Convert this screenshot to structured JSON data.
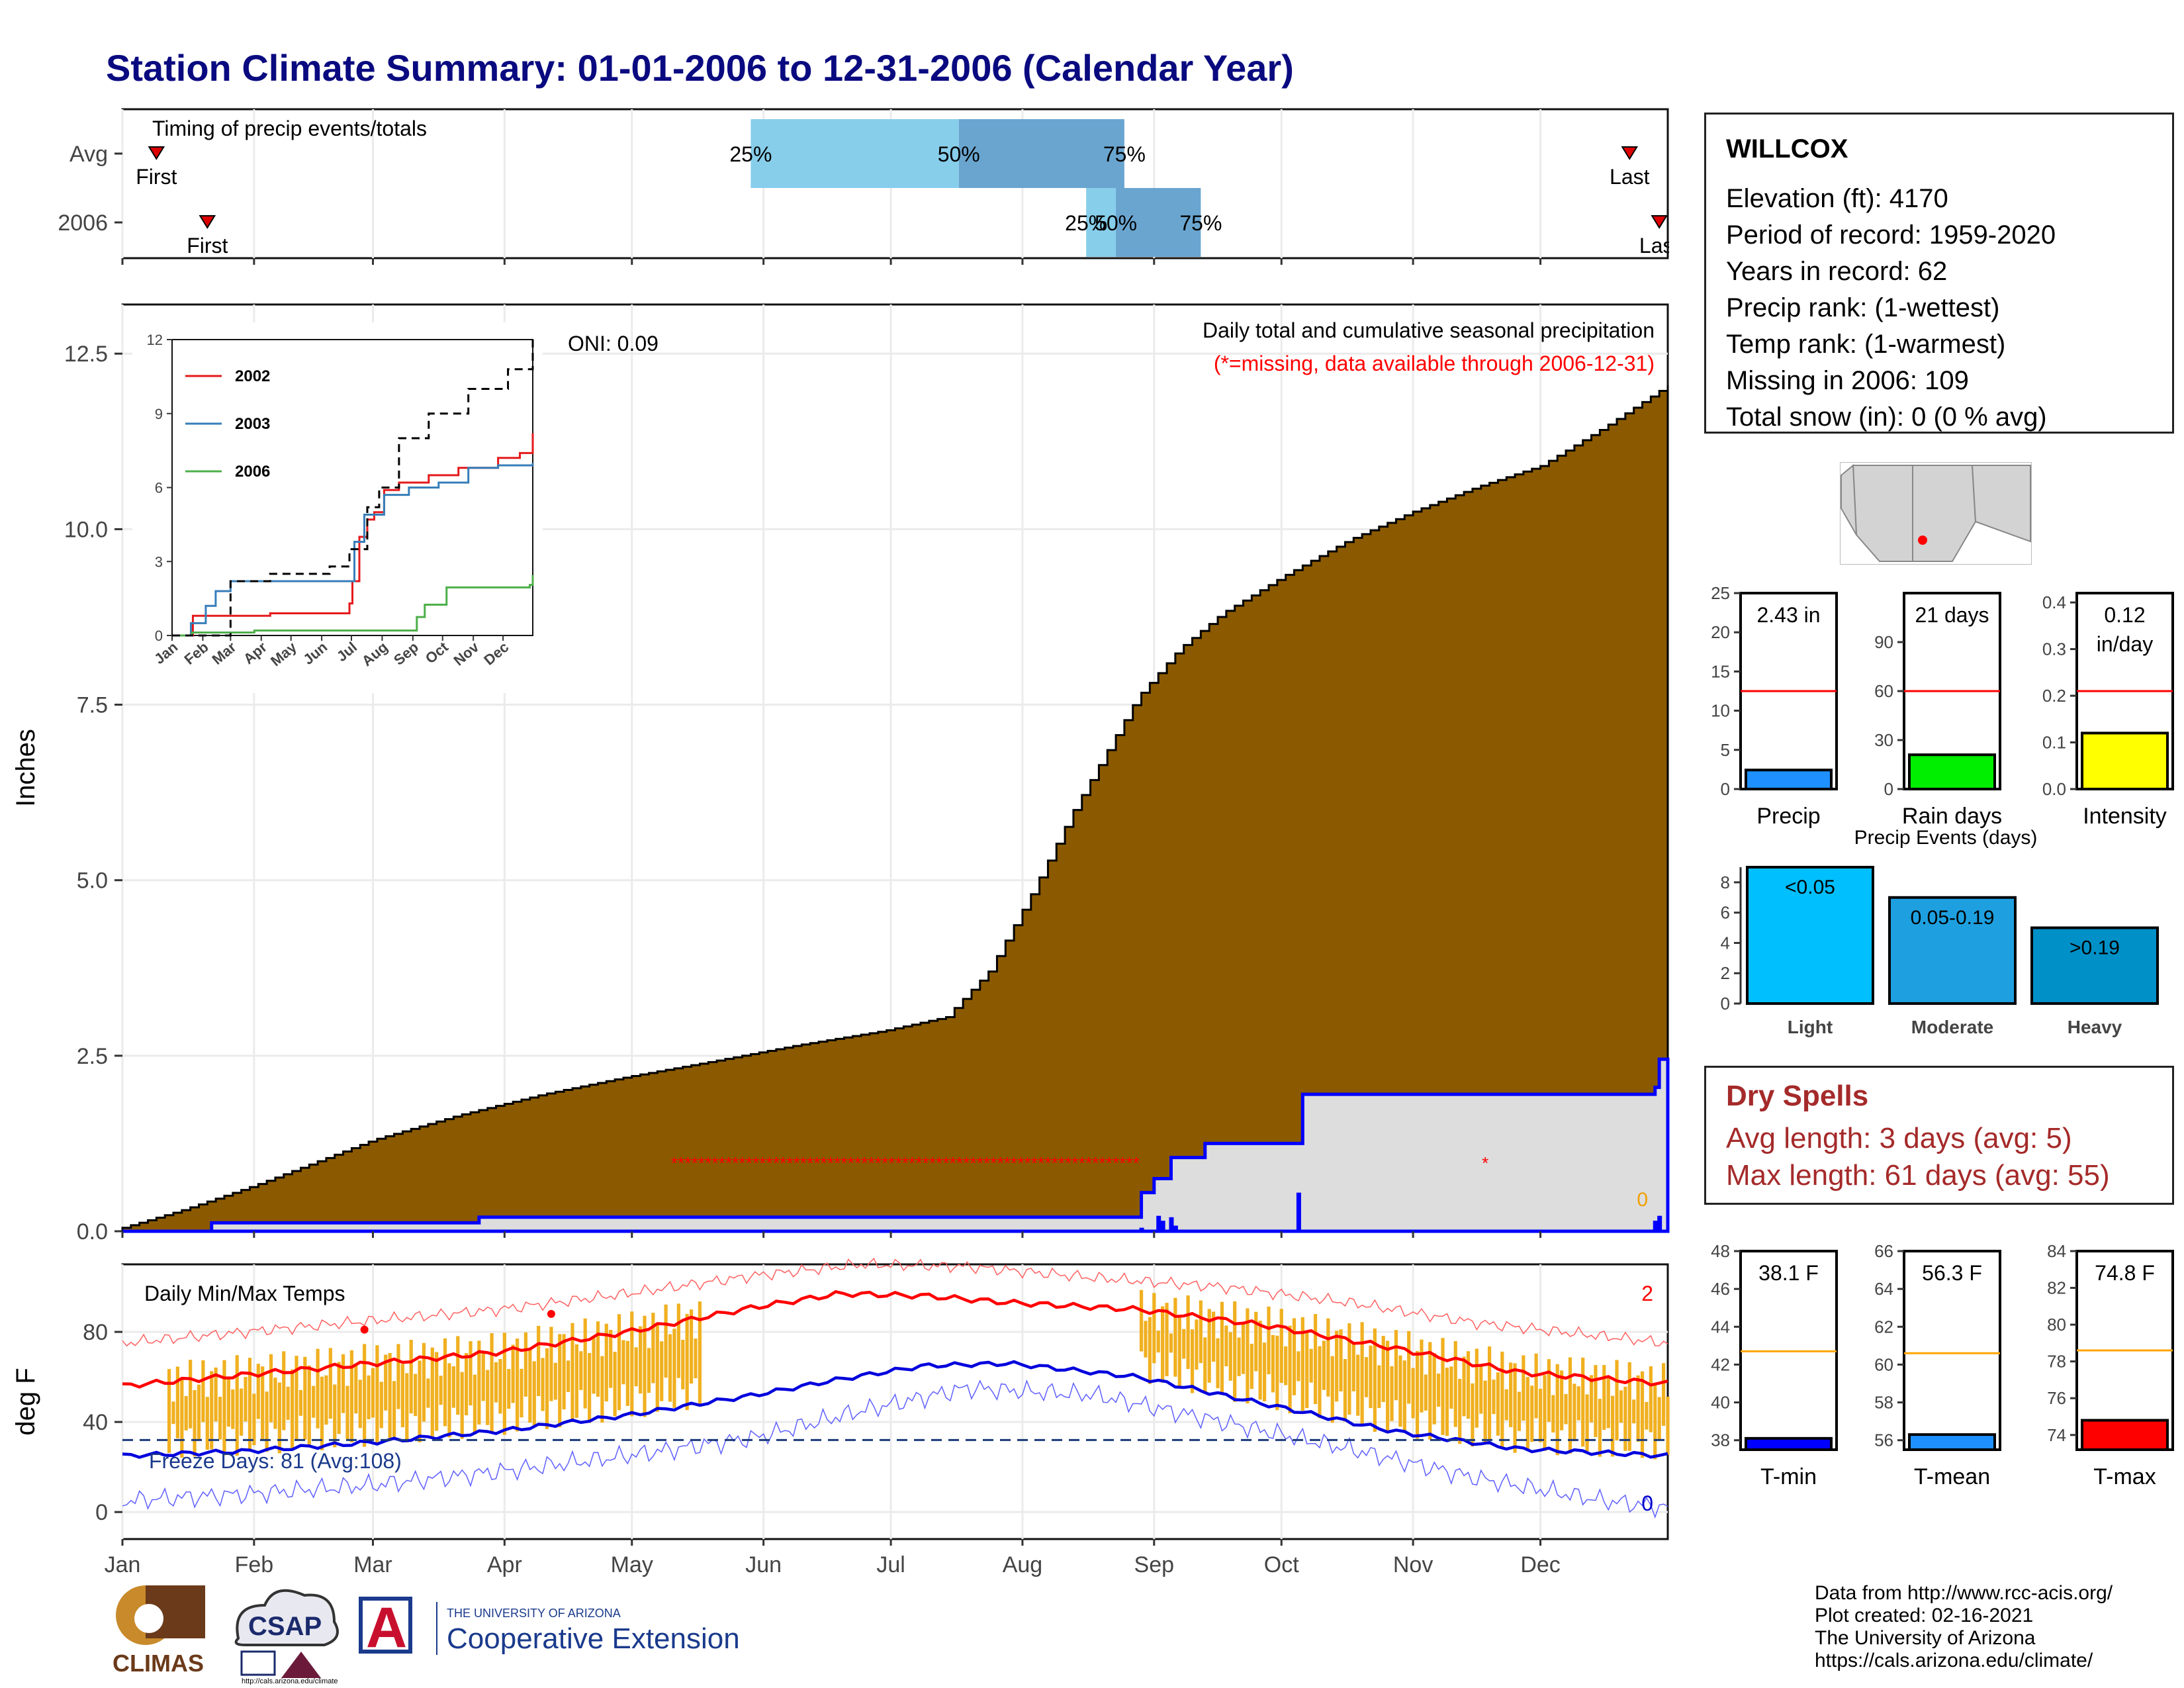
{
  "title": "Station Climate Summary: 01-01-2006 to 12-31-2006 (Calendar Year)",
  "station": {
    "name": "WILLCOX",
    "lines": [
      "Elevation (ft): 4170",
      "Period of record: 1959-2020",
      "Years in record: 62",
      "Precip rank:  (1-wettest)",
      "Temp rank:  (1-warmest)",
      "Missing in 2006: 109",
      "Total snow (in): 0 (0 % avg)"
    ]
  },
  "dry_spells": {
    "title": "Dry Spells",
    "avg": "Avg length: 3 days (avg: 5)",
    "max": "Max length: 61 days (avg: 55)"
  },
  "credits": [
    "Data from http://www.rcc-acis.org/",
    "Plot created: 02-16-2021",
    "The University of Arizona",
    "https://cals.arizona.edu/climate/"
  ],
  "logos": {
    "climas": "CLIMAS",
    "csap": "CSAP",
    "csap_url": "http://cals.arizona.edu/climate",
    "ua_small": "THE UNIVERSITY OF ARIZONA",
    "ua_big": "Cooperative Extension",
    "ua_letter": "A"
  },
  "colors": {
    "brown_fill": "#8B5A00",
    "avg_precip_line": "#0000ff",
    "gray_fill": "#dddddd",
    "tmax_line": "#ff0000",
    "tmin_line": "#0000dd",
    "temp_bars": "#f0b020",
    "title": "#0a0a80",
    "light_blue": "#87ceeb",
    "mid_blue": "#6aa5d0"
  },
  "chart_data": [
    {
      "id": "timing",
      "type": "bar",
      "title": "Timing of precip events/totals",
      "rows": [
        {
          "label": "Avg",
          "first_doy": 9,
          "last_doy": 356,
          "p25_doy": 149,
          "p50_doy": 198,
          "p75_doy": 237,
          "first_label": "First",
          "last_label": "Last",
          "p25_label": "25%",
          "p50_label": "50%",
          "p75_label": "75%"
        },
        {
          "label": "2006",
          "first_doy": 21,
          "last_doy": 363,
          "p25_doy": 228,
          "p50_doy": 235,
          "p75_doy": 255,
          "first_label": "First",
          "last_label": "Last",
          "p25_label": "25%",
          "p50_label": "50%",
          "p75_label": "75%"
        }
      ]
    },
    {
      "id": "cumulative-precip",
      "type": "area",
      "title": "Daily total and cumulative seasonal precipitation",
      "subtitle": "(*=missing, data available through 2006-12-31)",
      "ylabel": "Inches",
      "ylim": [
        0,
        13
      ],
      "yticks": [
        "0.0",
        "2.5",
        "5.0",
        "7.5",
        "10.0",
        "12.5"
      ],
      "xticks": [
        "Jan",
        "Feb",
        "Mar",
        "Apr",
        "May",
        "Jun",
        "Jul",
        "Aug",
        "Sep",
        "Oct",
        "Nov",
        "Dec"
      ],
      "oni": "ONI: 0.09",
      "count_label": "0",
      "avg_cumulative": {
        "doy": [
          1,
          15,
          32,
          45,
          60,
          80,
          100,
          120,
          140,
          160,
          180,
          195,
          205,
          215,
          225,
          240,
          250,
          260,
          275,
          290,
          305,
          320,
          335,
          350,
          365
        ],
        "values": [
          0.05,
          0.3,
          0.65,
          0.95,
          1.3,
          1.65,
          1.95,
          2.2,
          2.42,
          2.65,
          2.85,
          3.05,
          3.7,
          4.8,
          6.0,
          7.6,
          8.3,
          8.8,
          9.35,
          9.85,
          10.25,
          10.6,
          10.9,
          11.45,
          12.05
        ]
      },
      "season_2006": {
        "doy": [
          1,
          21,
          22,
          84,
          85,
          240,
          241,
          244,
          248,
          256,
          270,
          278,
          279,
          362,
          363,
          365
        ],
        "values": [
          0,
          0,
          0.12,
          0.12,
          0.2,
          0.2,
          0.55,
          0.75,
          1.05,
          1.25,
          1.25,
          1.25,
          1.95,
          2.05,
          2.45,
          2.45
        ]
      },
      "daily_2006": {
        "doy": [
          241,
          243,
          245,
          246,
          248,
          249,
          278,
          362,
          363
        ],
        "values": [
          0.05,
          0.02,
          0.22,
          0.15,
          0.2,
          0.08,
          0.55,
          0.15,
          0.22
        ]
      },
      "missing_days": {
        "start_doy": 131,
        "end_doy": 240,
        "value": 1.0,
        "extra_doy": 322
      }
    },
    {
      "id": "inset-cumulative",
      "type": "line",
      "yticks": [
        "0",
        "3",
        "6",
        "9",
        "12"
      ],
      "ylim": [
        0,
        12
      ],
      "xticks": [
        "Jan",
        "Feb",
        "Mar",
        "Apr",
        "May",
        "Jun",
        "Jul",
        "Aug",
        "Sep",
        "Oct",
        "Nov",
        "Dec"
      ],
      "series": [
        {
          "name": "2002",
          "color": "#e41a1c",
          "doy": [
            1,
            20,
            22,
            50,
            100,
            180,
            183,
            190,
            198,
            205,
            215,
            230,
            260,
            290,
            330,
            352,
            365
          ],
          "values": [
            0,
            0,
            0.8,
            0.8,
            0.9,
            1.3,
            2.2,
            4.0,
            4.7,
            5.0,
            5.9,
            6.2,
            6.5,
            6.8,
            7.2,
            7.4,
            8.2
          ]
        },
        {
          "name": "2003",
          "color": "#377eb8",
          "doy": [
            1,
            20,
            35,
            45,
            60,
            160,
            175,
            185,
            195,
            215,
            240,
            270,
            300,
            330,
            365
          ],
          "values": [
            0,
            0.5,
            1.2,
            1.8,
            2.2,
            2.2,
            2.2,
            3.8,
            4.9,
            5.7,
            6.0,
            6.2,
            6.8,
            6.9,
            7.0
          ]
        },
        {
          "name": "2006",
          "color": "#4daf4a",
          "doy": [
            1,
            21,
            84,
            240,
            248,
            256,
            278,
            362,
            365
          ],
          "values": [
            0,
            0.12,
            0.2,
            0.2,
            0.75,
            1.25,
            1.95,
            2.05,
            2.45
          ]
        },
        {
          "name": "",
          "color": "#000000",
          "doy": [
            1,
            60,
            100,
            160,
            180,
            198,
            210,
            230,
            260,
            300,
            340,
            365
          ],
          "values": [
            0,
            2.2,
            2.5,
            2.8,
            3.5,
            5.2,
            6.0,
            8.0,
            9.0,
            10.0,
            10.8,
            12.05
          ]
        }
      ]
    },
    {
      "id": "daily-temps",
      "type": "line",
      "title": "Daily Min/Max Temps",
      "ylabel": "deg F",
      "ylim": [
        -12,
        110
      ],
      "yticks": [
        "0",
        "40",
        "80"
      ],
      "xticks": [
        "Jan",
        "Feb",
        "Mar",
        "Apr",
        "May",
        "Jun",
        "Jul",
        "Aug",
        "Sep",
        "Oct",
        "Nov",
        "Dec"
      ],
      "freeze_label": "Freeze Days: 81 (Avg:108)",
      "freeze_line_value": 32,
      "record_high_count": "2",
      "record_low_count": "0",
      "avg_tmax": {
        "doy": [
          1,
          30,
          60,
          90,
          120,
          150,
          170,
          190,
          210,
          240,
          270,
          300,
          330,
          365
        ],
        "values": [
          56,
          61,
          66,
          71,
          80,
          91,
          97,
          96,
          93,
          90,
          83,
          73,
          62,
          57
        ]
      },
      "avg_tmin": {
        "doy": [
          1,
          30,
          60,
          90,
          120,
          150,
          170,
          190,
          210,
          240,
          270,
          300,
          330,
          365
        ],
        "values": [
          25,
          27,
          31,
          36,
          43,
          52,
          59,
          65,
          66,
          60,
          48,
          36,
          28,
          25
        ]
      },
      "record_max": {
        "doy": [
          1,
          30,
          60,
          90,
          120,
          150,
          175,
          200,
          230,
          260,
          290,
          320,
          365
        ],
        "values": [
          75,
          80,
          85,
          90,
          97,
          105,
          110,
          109,
          104,
          100,
          93,
          84,
          75
        ]
      },
      "record_min": {
        "doy": [
          1,
          30,
          60,
          90,
          120,
          150,
          175,
          200,
          230,
          260,
          290,
          320,
          350,
          365
        ],
        "values": [
          5,
          8,
          12,
          18,
          25,
          33,
          45,
          55,
          52,
          40,
          28,
          15,
          5,
          2
        ]
      },
      "bars_2006": [
        {
          "start_doy": 12,
          "end_doy": 137
        },
        {
          "start_doy": 241,
          "end_doy": 365
        }
      ],
      "record_high_points": [
        {
          "doy": 58,
          "value": 81
        },
        {
          "doy": 102,
          "value": 88
        }
      ]
    },
    {
      "id": "summary-precip",
      "type": "bar",
      "label": "Precip",
      "value_label": "2.43 in",
      "value": 2.43,
      "avg": 12.5,
      "ylim": [
        0,
        25
      ],
      "yticks": [
        "0",
        "5",
        "10",
        "15",
        "20",
        "25"
      ],
      "color": "#1e90ff"
    },
    {
      "id": "summary-raindays",
      "type": "bar",
      "label": "Rain days",
      "value_label": "21 days",
      "value": 21,
      "avg": 60,
      "ylim": [
        0,
        120
      ],
      "yticks": [
        "0",
        "30",
        "60",
        "90"
      ],
      "color": "#00ee00"
    },
    {
      "id": "summary-intensity",
      "type": "bar",
      "label": "Intensity",
      "value_label": "0.12",
      "value_unit": "in/day",
      "value": 0.12,
      "avg": 0.21,
      "ylim": [
        0,
        0.42
      ],
      "yticks": [
        "0.0",
        "0.1",
        "0.2",
        "0.3",
        "0.4"
      ],
      "color": "#ffff00"
    },
    {
      "id": "precip-events",
      "type": "bar",
      "title": "Precip Events (days)",
      "categories": [
        "Light",
        "Moderate",
        "Heavy"
      ],
      "values": [
        9,
        7,
        5
      ],
      "bar_labels": [
        "<0.05",
        "0.05-0.19",
        ">0.19"
      ],
      "colors": [
        "#00bfff",
        "#1ea0e0",
        "#0090c8"
      ],
      "ylim": [
        0,
        9
      ],
      "yticks": [
        "0",
        "2",
        "4",
        "6",
        "8"
      ]
    },
    {
      "id": "summary-tmin",
      "type": "bar",
      "label": "T-min",
      "value_label": "38.1 F",
      "value": 38.1,
      "avg": 42.7,
      "ylim": [
        37.5,
        48
      ],
      "yticks": [
        "38",
        "40",
        "42",
        "44",
        "46",
        "48"
      ],
      "color": "#0000ff"
    },
    {
      "id": "summary-tmean",
      "type": "bar",
      "label": "T-mean",
      "value_label": "56.3 F",
      "value": 56.3,
      "avg": 60.6,
      "ylim": [
        55.5,
        66
      ],
      "yticks": [
        "56",
        "58",
        "60",
        "62",
        "64",
        "66"
      ],
      "color": "#1e90ff"
    },
    {
      "id": "summary-tmax",
      "type": "bar",
      "label": "T-max",
      "value_label": "74.8 F",
      "value": 74.8,
      "avg": 78.6,
      "ylim": [
        73.2,
        84
      ],
      "yticks": [
        "74",
        "76",
        "78",
        "80",
        "82",
        "84"
      ],
      "color": "#ff0000"
    }
  ]
}
